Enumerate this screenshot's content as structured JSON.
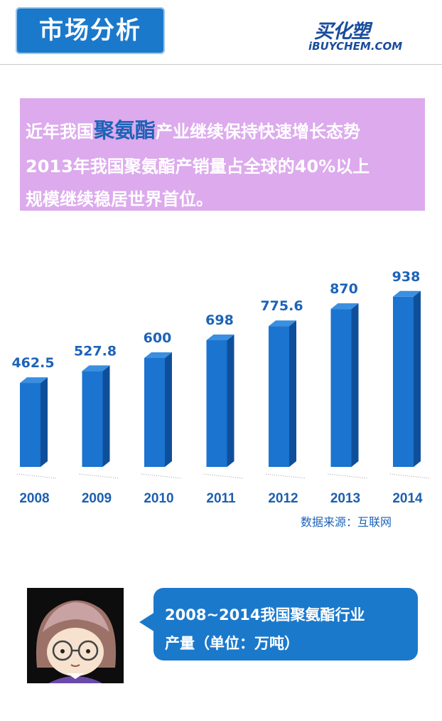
{
  "header": {
    "section_title": "市场分析"
  },
  "logo": {
    "cn": "买化塑",
    "en": "iBUYCHEM.COM"
  },
  "intro": {
    "line1_pre": "近年我国",
    "line1_highlight": "聚氨酯",
    "line1_post": "产业继续保持快速增长态势",
    "line2": "2013年我国聚氨酯产销量占全球的40%以上",
    "line3": "规模继续稳居世界首位。"
  },
  "source": "数据来源：互联网",
  "bubble": {
    "line1": "2008~2014我国聚氨酯行业",
    "line2": "产量（单位：万吨）"
  },
  "colors": {
    "accent": "#1b79cc",
    "bar_front": "#1a74d0",
    "bar_side": "#0f4f9a",
    "intro_bg": "#dcaaed"
  },
  "chart_data": {
    "type": "bar",
    "categories": [
      "2008",
      "2009",
      "2010",
      "2011",
      "2012",
      "2013",
      "2014"
    ],
    "values": [
      462.5,
      527.8,
      600,
      698,
      775.6,
      870,
      938
    ],
    "data_labels": [
      "462.5",
      "527.8",
      "600",
      "698",
      "775.6",
      "870",
      "938"
    ],
    "title": "",
    "xlabel": "",
    "ylabel": "",
    "grid": false,
    "legend": "none"
  }
}
